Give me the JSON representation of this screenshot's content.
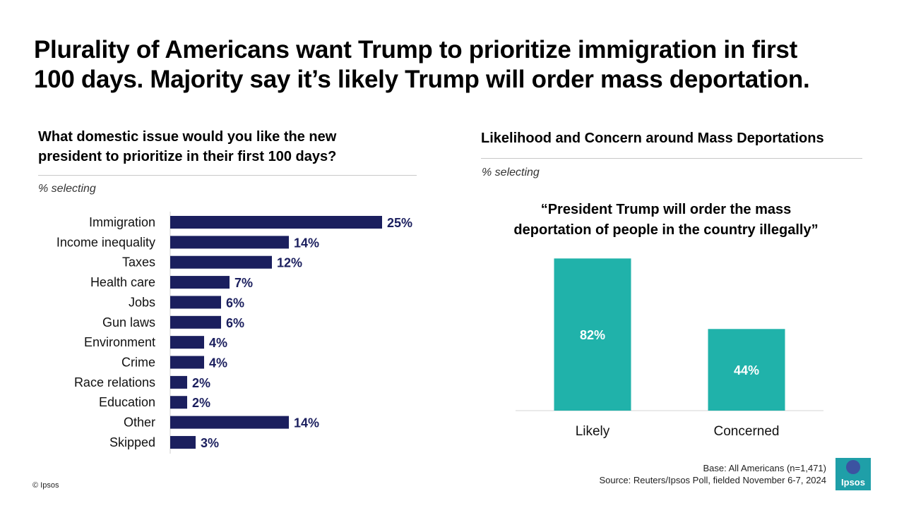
{
  "title": {
    "line1": "Plurality of Americans want Trump to prioritize immigration in first",
    "line2": "100 days. Majority say it’s likely Trump will order mass deportation."
  },
  "left": {
    "question_line1": "What domestic issue would you like the new",
    "question_line2": "president to prioritize in their first 100 days?",
    "note": "% selecting"
  },
  "right": {
    "heading": "Likelihood and Concern around Mass Deportations",
    "note": "% selecting",
    "quote_line1": "“President Trump will order the mass",
    "quote_line2": "deportation of people in the country illegally”"
  },
  "chart_data": [
    {
      "type": "bar",
      "orientation": "horizontal",
      "categories": [
        "Immigration",
        "Income inequality",
        "Taxes",
        "Health care",
        "Jobs",
        "Gun laws",
        "Environment",
        "Crime",
        "Race relations",
        "Education",
        "Other",
        "Skipped"
      ],
      "values": [
        25,
        14,
        12,
        7,
        6,
        6,
        4,
        4,
        2,
        2,
        14,
        3
      ],
      "labels": [
        "25%",
        "14%",
        "12%",
        "7%",
        "6%",
        "6%",
        "4%",
        "4%",
        "2%",
        "2%",
        "14%",
        "3%"
      ],
      "color": "#1b1f5e",
      "title": "What domestic issue would you like the new president to prioritize in their first 100 days?",
      "unit": "%"
    },
    {
      "type": "bar",
      "orientation": "vertical",
      "categories": [
        "Likely",
        "Concerned"
      ],
      "values": [
        82,
        44
      ],
      "labels": [
        "82%",
        "44%"
      ],
      "color": "#20b2aa",
      "title": "“President Trump will order the mass deportation of people in the country illegally”",
      "unit": "%"
    }
  ],
  "footer": {
    "base": "Base: All Americans (n=1,471)",
    "source": "Source: Reuters/Ipsos Poll, fielded November 6-7, 2024",
    "copyright": "© Ipsos",
    "logo_text": "Ipsos"
  }
}
